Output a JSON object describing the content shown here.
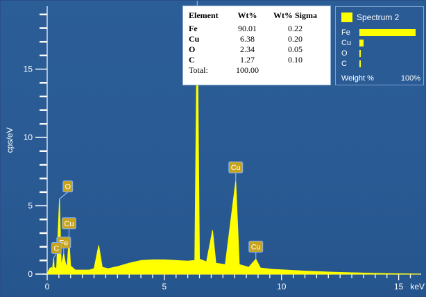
{
  "chart_data": {
    "type": "line",
    "xlabel": "keV",
    "ylabel": "cps/eV",
    "xlim": [
      0,
      15.9
    ],
    "ylim": [
      0,
      19.6
    ],
    "x_ticks": [
      "0",
      "5",
      "10",
      "15"
    ],
    "y_ticks": [
      "0",
      "5",
      "10",
      "15"
    ],
    "spectrum": [
      [
        0.0,
        0.0
      ],
      [
        0.1,
        0.4
      ],
      [
        0.18,
        0.5
      ],
      [
        0.22,
        0.3
      ],
      [
        0.277,
        1.2
      ],
      [
        0.3,
        0.5
      ],
      [
        0.4,
        0.4
      ],
      [
        0.525,
        5.5
      ],
      [
        0.6,
        0.6
      ],
      [
        0.705,
        1.5
      ],
      [
        0.78,
        0.8
      ],
      [
        0.85,
        0.5
      ],
      [
        0.93,
        2.6
      ],
      [
        1.0,
        0.6
      ],
      [
        1.2,
        0.3
      ],
      [
        1.5,
        0.3
      ],
      [
        1.8,
        0.3
      ],
      [
        2.0,
        0.4
      ],
      [
        2.2,
        2.1
      ],
      [
        2.35,
        0.5
      ],
      [
        2.6,
        0.4
      ],
      [
        3.0,
        0.55
      ],
      [
        3.5,
        0.8
      ],
      [
        4.0,
        1.0
      ],
      [
        4.5,
        1.05
      ],
      [
        5.0,
        1.05
      ],
      [
        5.5,
        1.0
      ],
      [
        6.0,
        0.95
      ],
      [
        6.3,
        1.0
      ],
      [
        6.403,
        19.6
      ],
      [
        6.5,
        1.1
      ],
      [
        6.8,
        0.9
      ],
      [
        7.058,
        3.2
      ],
      [
        7.2,
        0.8
      ],
      [
        7.6,
        0.7
      ],
      [
        8.047,
        6.8
      ],
      [
        8.2,
        0.7
      ],
      [
        8.6,
        0.5
      ],
      [
        8.905,
        1.1
      ],
      [
        9.1,
        0.45
      ],
      [
        9.6,
        0.35
      ],
      [
        10.2,
        0.3
      ],
      [
        11.0,
        0.22
      ],
      [
        12.0,
        0.15
      ],
      [
        13.0,
        0.1
      ],
      [
        14.0,
        0.06
      ],
      [
        14.7,
        0.03
      ],
      [
        15.9,
        0.0
      ]
    ],
    "peak_labels": [
      {
        "label": "Fe",
        "x": 6.403,
        "y": 19.6
      },
      {
        "label": "Cu",
        "x": 8.047,
        "y": 6.8
      },
      {
        "label": "Cu",
        "x": 8.905,
        "y": 1.1
      },
      {
        "label": "O",
        "x": 0.525,
        "y": 5.5
      },
      {
        "label": "Cu",
        "x": 0.93,
        "y": 2.6
      },
      {
        "label": "Fe",
        "x": 0.705,
        "y": 1.5
      },
      {
        "label": "C",
        "x": 0.277,
        "y": 1.2
      }
    ]
  },
  "results_table": {
    "headers": [
      "Element",
      "Wt%",
      "Wt% Sigma"
    ],
    "rows": [
      {
        "element": "Fe",
        "wt": "90.01",
        "sigma": "0.22"
      },
      {
        "element": "Cu",
        "wt": "6.38",
        "sigma": "0.20"
      },
      {
        "element": "O",
        "wt": "2.34",
        "sigma": "0.05"
      },
      {
        "element": "C",
        "wt": "1.27",
        "sigma": "0.10"
      }
    ],
    "total": {
      "label": "Total:",
      "value": "100.00"
    }
  },
  "spectrum_panel": {
    "title": "Spectrum 2",
    "swatch_color": "#ffff00",
    "bars": [
      {
        "label": "Fe",
        "value": 90.01
      },
      {
        "label": "Cu",
        "value": 6.38
      },
      {
        "label": "O",
        "value": 2.34
      },
      {
        "label": "C",
        "value": 1.27
      }
    ],
    "footer_left": "Weight %",
    "footer_right": "100%"
  },
  "colors": {
    "background": "#2b5d97",
    "spectrum_fill": "#ffff00",
    "axis": "#ffffff"
  }
}
